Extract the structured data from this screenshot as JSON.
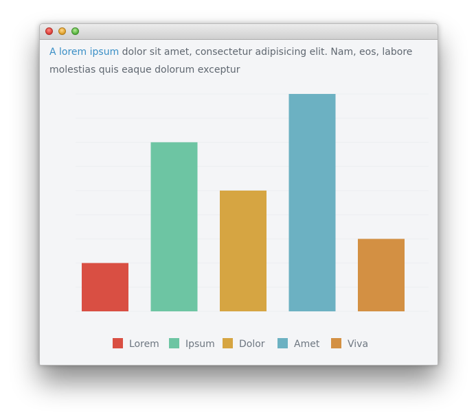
{
  "window": {
    "controls": [
      "close-icon",
      "minimize-icon",
      "maximize-icon"
    ]
  },
  "intro": {
    "link_text": "A lorem ipsum",
    "body_text": " dolor sit amet, consectetur adipisicing elit. Nam, eos, labore molestias quis eaque dolorum exceptur"
  },
  "chart_data": {
    "type": "bar",
    "categories": [
      "Lorem",
      "Ipsum",
      "Dolor",
      "Amet",
      "Viva"
    ],
    "values": [
      2,
      7,
      5,
      9,
      3
    ],
    "colors": [
      "#d94f43",
      "#6dc5a3",
      "#d6a542",
      "#6cb1c2",
      "#d39043"
    ],
    "ylim": [
      0,
      9
    ],
    "grid": true,
    "legend_position": "bottom",
    "title": "",
    "xlabel": "",
    "ylabel": ""
  }
}
